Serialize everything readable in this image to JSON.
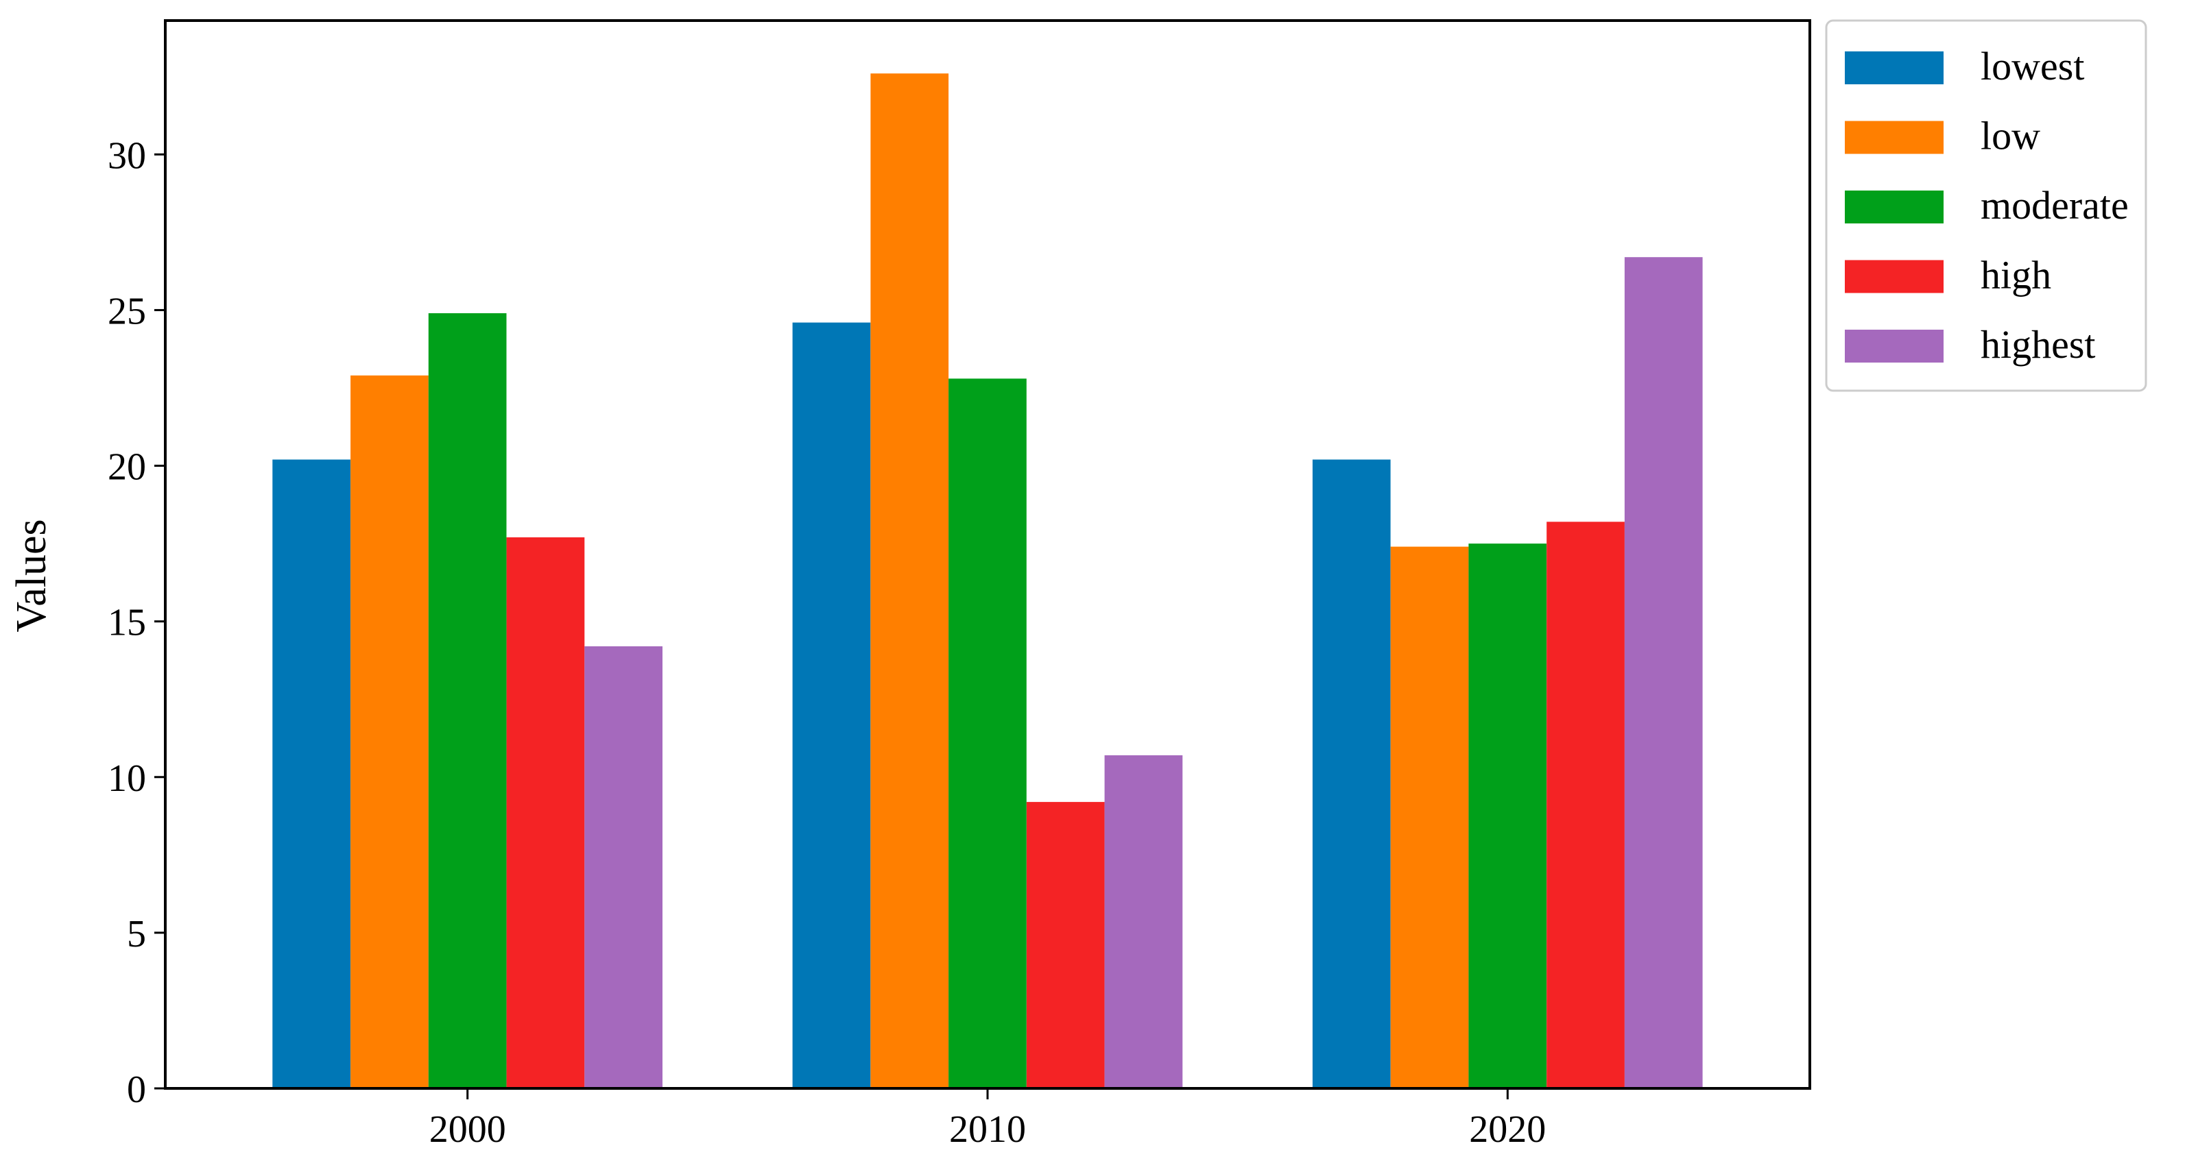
{
  "chart_data": {
    "type": "bar",
    "categories": [
      "2000",
      "2010",
      "2020"
    ],
    "series": [
      {
        "name": "lowest",
        "color": "#0077B6",
        "values": [
          20.2,
          24.6,
          20.2
        ]
      },
      {
        "name": "low",
        "color": "#FF7F00",
        "values": [
          22.9,
          32.6,
          17.4
        ]
      },
      {
        "name": "moderate",
        "color": "#00A01A",
        "values": [
          24.9,
          22.8,
          17.5
        ]
      },
      {
        "name": "high",
        "color": "#F42325",
        "values": [
          17.7,
          9.2,
          18.2
        ]
      },
      {
        "name": "highest",
        "color": "#A569BD",
        "values": [
          14.2,
          10.7,
          26.7
        ]
      }
    ],
    "title": "",
    "xlabel": "",
    "ylabel": "Values",
    "ylim": [
      0,
      34.3
    ],
    "yticks": [
      0,
      5,
      10,
      15,
      20,
      25,
      30
    ],
    "grid": false,
    "legend_position": "upper-right-outside"
  }
}
